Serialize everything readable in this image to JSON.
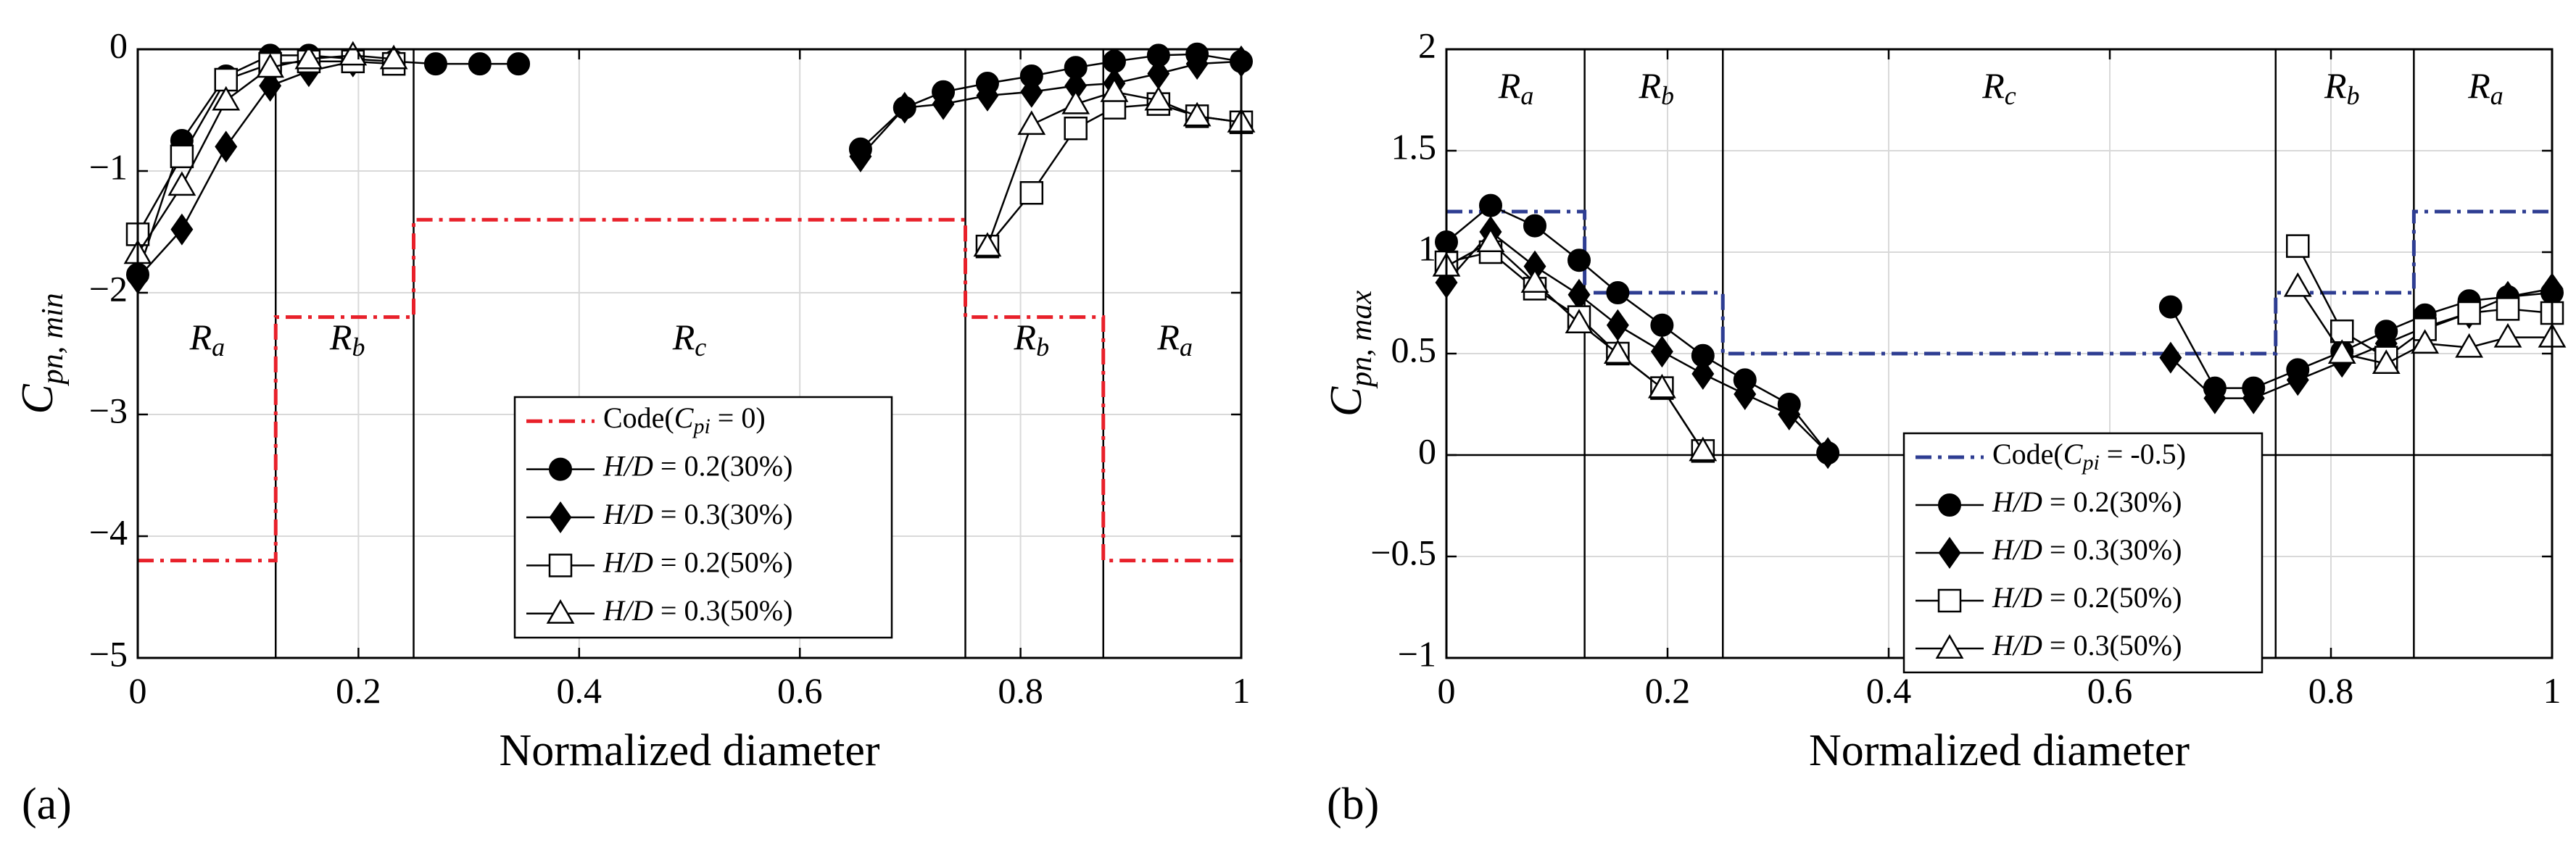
{
  "chart_data": [
    {
      "type": "line",
      "panel_label": "(a)",
      "xlabel": "Normalized diameter",
      "ylabel_main": "C",
      "ylabel_sub": "pn, min",
      "xlim": [
        0,
        1
      ],
      "ylim": [
        -5,
        0
      ],
      "xticks": [
        0,
        0.2,
        0.4,
        0.6,
        0.8,
        1
      ],
      "xtick_labels": [
        "0",
        "0.2",
        "0.4",
        "0.6",
        "0.8",
        "1"
      ],
      "yticks": [
        -5,
        -4,
        -3,
        -2,
        -1,
        0
      ],
      "ytick_labels": [
        "−5",
        "−4",
        "−3",
        "−2",
        "−1",
        "0"
      ],
      "grid": true,
      "region_boundaries": [
        0.125,
        0.25,
        0.75,
        0.875
      ],
      "regions": [
        {
          "main": "R",
          "sub": "a",
          "x": 0.063,
          "y": -2.4
        },
        {
          "main": "R",
          "sub": "b",
          "x": 0.19,
          "y": -2.4
        },
        {
          "main": "R",
          "sub": "c",
          "x": 0.5,
          "y": -2.4
        },
        {
          "main": "R",
          "sub": "b",
          "x": 0.81,
          "y": -2.4
        },
        {
          "main": "R",
          "sub": "a",
          "x": 0.94,
          "y": -2.4
        }
      ],
      "legend_position": "center-bottom",
      "series": [
        {
          "name": "Code",
          "legend_parts": [
            "Code(",
            "C",
            "pi",
            " = 0)"
          ],
          "style": "code",
          "color": "#e8202a",
          "x": [
            0,
            0.125,
            0.125,
            0.25,
            0.25,
            0.75,
            0.75,
            0.875,
            0.875,
            1
          ],
          "y": [
            -4.2,
            -4.2,
            -2.2,
            -2.2,
            -1.4,
            -1.4,
            -2.2,
            -2.2,
            -4.2,
            -4.2
          ]
        },
        {
          "name": "H/D = 0.2(30%)",
          "legend_parts": [
            "H/D",
            " = 0.2(30%)"
          ],
          "marker": "circle-filled",
          "segments": [
            {
              "x": [
                0.0,
                0.04,
                0.08,
                0.12,
                0.155,
                0.195,
                0.232,
                0.27,
                0.31,
                0.345
              ],
              "y": [
                -1.85,
                -0.75,
                -0.22,
                -0.05,
                -0.05,
                -0.08,
                -0.1,
                -0.12,
                -0.12,
                -0.12
              ]
            },
            {
              "x": [
                0.655,
                0.695,
                0.73,
                0.77,
                0.81,
                0.85,
                0.885,
                0.925,
                0.96,
                1.0
              ],
              "y": [
                -0.82,
                -0.48,
                -0.35,
                -0.28,
                -0.22,
                -0.15,
                -0.1,
                -0.05,
                -0.04,
                -0.1
              ]
            }
          ]
        },
        {
          "name": "H/D = 0.3(30%)",
          "legend_parts": [
            "H/D",
            " = 0.3(30%)"
          ],
          "marker": "diamond-filled",
          "segments": [
            {
              "x": [
                0.0,
                0.04,
                0.08,
                0.12,
                0.155,
                0.195
              ],
              "y": [
                -1.88,
                -1.48,
                -0.8,
                -0.3,
                -0.18,
                -0.1
              ]
            },
            {
              "x": [
                0.655,
                0.695,
                0.73,
                0.77,
                0.81,
                0.85,
                0.885,
                0.925,
                0.96,
                1.0
              ],
              "y": [
                -0.88,
                -0.48,
                -0.45,
                -0.38,
                -0.35,
                -0.3,
                -0.28,
                -0.2,
                -0.12,
                -0.1
              ]
            }
          ]
        },
        {
          "name": "H/D = 0.2(50%)",
          "legend_parts": [
            "H/D",
            " = 0.2(50%)"
          ],
          "marker": "square-open",
          "segments": [
            {
              "x": [
                0.0,
                0.04,
                0.08,
                0.12,
                0.155,
                0.195,
                0.232
              ],
              "y": [
                -1.52,
                -0.88,
                -0.25,
                -0.12,
                -0.1,
                -0.1,
                -0.12
              ]
            },
            {
              "x": [
                0.77,
                0.81,
                0.85,
                0.885,
                0.925,
                0.96,
                1.0
              ],
              "y": [
                -1.62,
                -1.18,
                -0.65,
                -0.48,
                -0.45,
                -0.55,
                -0.6
              ]
            }
          ]
        },
        {
          "name": "H/D = 0.3(50%)",
          "legend_parts": [
            "H/D",
            " = 0.3(50%)"
          ],
          "marker": "triangle-open",
          "segments": [
            {
              "x": [
                0.0,
                0.04,
                0.08,
                0.12,
                0.155,
                0.195,
                0.232
              ],
              "y": [
                -1.68,
                -1.12,
                -0.42,
                -0.15,
                -0.08,
                -0.05,
                -0.08
              ]
            },
            {
              "x": [
                0.77,
                0.81,
                0.85,
                0.885,
                0.925,
                0.96,
                1.0
              ],
              "y": [
                -1.62,
                -0.62,
                -0.45,
                -0.35,
                -0.42,
                -0.55,
                -0.6
              ]
            }
          ]
        }
      ]
    },
    {
      "type": "line",
      "panel_label": "(b)",
      "xlabel": "Normalized diameter",
      "ylabel_main": "C",
      "ylabel_sub": "pn, max",
      "xlim": [
        0,
        1
      ],
      "ylim": [
        -1,
        2
      ],
      "xticks": [
        0,
        0.2,
        0.4,
        0.6,
        0.8,
        1
      ],
      "xtick_labels": [
        "0",
        "0.2",
        "0.4",
        "0.6",
        "0.8",
        "1"
      ],
      "yticks": [
        -1,
        -0.5,
        0,
        0.5,
        1,
        1.5,
        2
      ],
      "ytick_labels": [
        "−1",
        "−0.5",
        "0",
        "0.5",
        "1",
        "1.5",
        "2"
      ],
      "grid": true,
      "zero_line": true,
      "region_boundaries": [
        0.125,
        0.25,
        0.75,
        0.875
      ],
      "regions": [
        {
          "main": "R",
          "sub": "a",
          "x": 0.063,
          "y": 1.8
        },
        {
          "main": "R",
          "sub": "b",
          "x": 0.19,
          "y": 1.8
        },
        {
          "main": "R",
          "sub": "c",
          "x": 0.5,
          "y": 1.8
        },
        {
          "main": "R",
          "sub": "b",
          "x": 0.81,
          "y": 1.8
        },
        {
          "main": "R",
          "sub": "a",
          "x": 0.94,
          "y": 1.8
        }
      ],
      "legend_position": "center-bottom",
      "series": [
        {
          "name": "Code",
          "legend_parts": [
            "Code(",
            "C",
            "pi",
            " = -0.5)"
          ],
          "style": "code",
          "color": "#2e3d92",
          "x": [
            0,
            0.125,
            0.125,
            0.25,
            0.25,
            0.75,
            0.75,
            0.875,
            0.875,
            1
          ],
          "y": [
            1.2,
            1.2,
            0.8,
            0.8,
            0.5,
            0.5,
            0.8,
            0.8,
            1.2,
            1.2
          ]
        },
        {
          "name": "H/D = 0.2(30%)",
          "legend_parts": [
            "H/D",
            " = 0.2(30%)"
          ],
          "marker": "circle-filled",
          "segments": [
            {
              "x": [
                0.0,
                0.04,
                0.08,
                0.12,
                0.155,
                0.195,
                0.232,
                0.27,
                0.31,
                0.345
              ],
              "y": [
                1.05,
                1.23,
                1.13,
                0.96,
                0.8,
                0.64,
                0.49,
                0.37,
                0.25,
                0.01
              ]
            },
            {
              "x": [
                0.655,
                0.695,
                0.73,
                0.77,
                0.81,
                0.85,
                0.885,
                0.925,
                0.96,
                1.0
              ],
              "y": [
                0.73,
                0.33,
                0.33,
                0.42,
                0.51,
                0.61,
                0.69,
                0.76,
                0.78,
                0.8
              ]
            }
          ]
        },
        {
          "name": "H/D = 0.3(30%)",
          "legend_parts": [
            "H/D",
            " = 0.3(30%)"
          ],
          "marker": "diamond-filled",
          "segments": [
            {
              "x": [
                0.0,
                0.04,
                0.08,
                0.12,
                0.155,
                0.195,
                0.232,
                0.27,
                0.31,
                0.345
              ],
              "y": [
                0.85,
                1.1,
                0.93,
                0.79,
                0.64,
                0.51,
                0.4,
                0.3,
                0.2,
                0.01
              ]
            },
            {
              "x": [
                0.655,
                0.695,
                0.73,
                0.77,
                0.81,
                0.85,
                0.885,
                0.925,
                0.96,
                1.0
              ],
              "y": [
                0.48,
                0.28,
                0.28,
                0.37,
                0.46,
                0.55,
                0.63,
                0.7,
                0.78,
                0.82
              ]
            }
          ]
        },
        {
          "name": "H/D = 0.2(50%)",
          "legend_parts": [
            "H/D",
            " = 0.2(50%)"
          ],
          "marker": "square-open",
          "segments": [
            {
              "x": [
                0.0,
                0.04,
                0.08,
                0.12,
                0.155,
                0.195,
                0.232
              ],
              "y": [
                0.95,
                1.0,
                0.82,
                0.68,
                0.5,
                0.33,
                0.02
              ]
            },
            {
              "x": [
                0.77,
                0.81,
                0.85,
                0.885,
                0.925,
                0.96,
                1.0
              ],
              "y": [
                1.03,
                0.61,
                0.48,
                0.62,
                0.7,
                0.72,
                0.7
              ]
            }
          ]
        },
        {
          "name": "H/D = 0.3(50%)",
          "legend_parts": [
            "H/D",
            " = 0.3(50%)"
          ],
          "marker": "triangle-open",
          "segments": [
            {
              "x": [
                0.0,
                0.04,
                0.08,
                0.12,
                0.155,
                0.195,
                0.232
              ],
              "y": [
                0.93,
                1.05,
                0.85,
                0.65,
                0.5,
                0.33,
                0.02
              ]
            },
            {
              "x": [
                0.77,
                0.81,
                0.85,
                0.885,
                0.925,
                0.96,
                1.0
              ],
              "y": [
                0.83,
                0.5,
                0.45,
                0.55,
                0.53,
                0.58,
                0.58
              ]
            }
          ]
        }
      ]
    }
  ]
}
